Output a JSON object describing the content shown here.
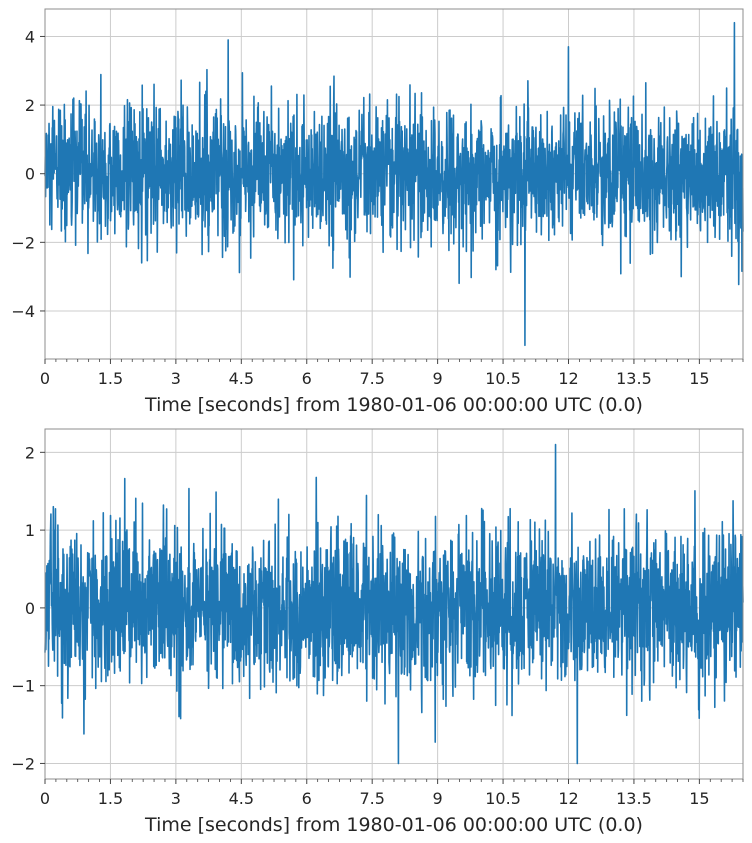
{
  "chart_data": [
    {
      "type": "line",
      "title": "",
      "xlabel": "Time [seconds] from 1980-01-06 00:00:00 UTC (0.0)",
      "ylabel": "",
      "xlim": [
        0,
        16
      ],
      "ylim": [
        -5.4,
        4.8
      ],
      "x_ticks": [
        0,
        1.5,
        3,
        4.5,
        6,
        7.5,
        9,
        10.5,
        12,
        13.5,
        15
      ],
      "x_tick_labels": [
        "0",
        "1.5",
        "3",
        "4.5",
        "6",
        "7.5",
        "9",
        "10.5",
        "12",
        "13.5",
        "15"
      ],
      "y_ticks": [
        4,
        2,
        0,
        -2,
        -4
      ],
      "y_tick_labels": [
        "4",
        "2",
        "0",
        "−2",
        "−4"
      ],
      "grid": true,
      "color": "#1f77b4",
      "signal": {
        "description": "Gaussian noise time series",
        "approx_std": 1.0,
        "notable_extremes": [
          {
            "x": 4.2,
            "y": 3.9
          },
          {
            "x": 11.0,
            "y": -5.0
          },
          {
            "x": 12.0,
            "y": 3.7
          },
          {
            "x": 15.8,
            "y": 4.4
          }
        ]
      }
    },
    {
      "type": "line",
      "title": "",
      "xlabel": "Time [seconds] from 1980-01-06 00:00:00 UTC (0.0)",
      "ylabel": "",
      "xlim": [
        0,
        16
      ],
      "ylim": [
        -2.2,
        2.3
      ],
      "x_ticks": [
        0,
        1.5,
        3,
        4.5,
        6,
        7.5,
        9,
        10.5,
        12,
        13.5,
        15
      ],
      "x_tick_labels": [
        "0",
        "1.5",
        "3",
        "4.5",
        "6",
        "7.5",
        "9",
        "10.5",
        "12",
        "13.5",
        "15"
      ],
      "y_ticks": [
        2,
        1,
        0,
        -1,
        -2
      ],
      "y_tick_labels": [
        "2",
        "1",
        "0",
        "−1",
        "−2"
      ],
      "grid": true,
      "color": "#1f77b4",
      "signal": {
        "description": "whitened noise time series",
        "approx_std": 0.5,
        "notable_extremes": [
          {
            "x": 11.7,
            "y": 2.1
          },
          {
            "x": 8.1,
            "y": -2.0
          },
          {
            "x": 12.2,
            "y": -2.0
          }
        ]
      }
    }
  ]
}
